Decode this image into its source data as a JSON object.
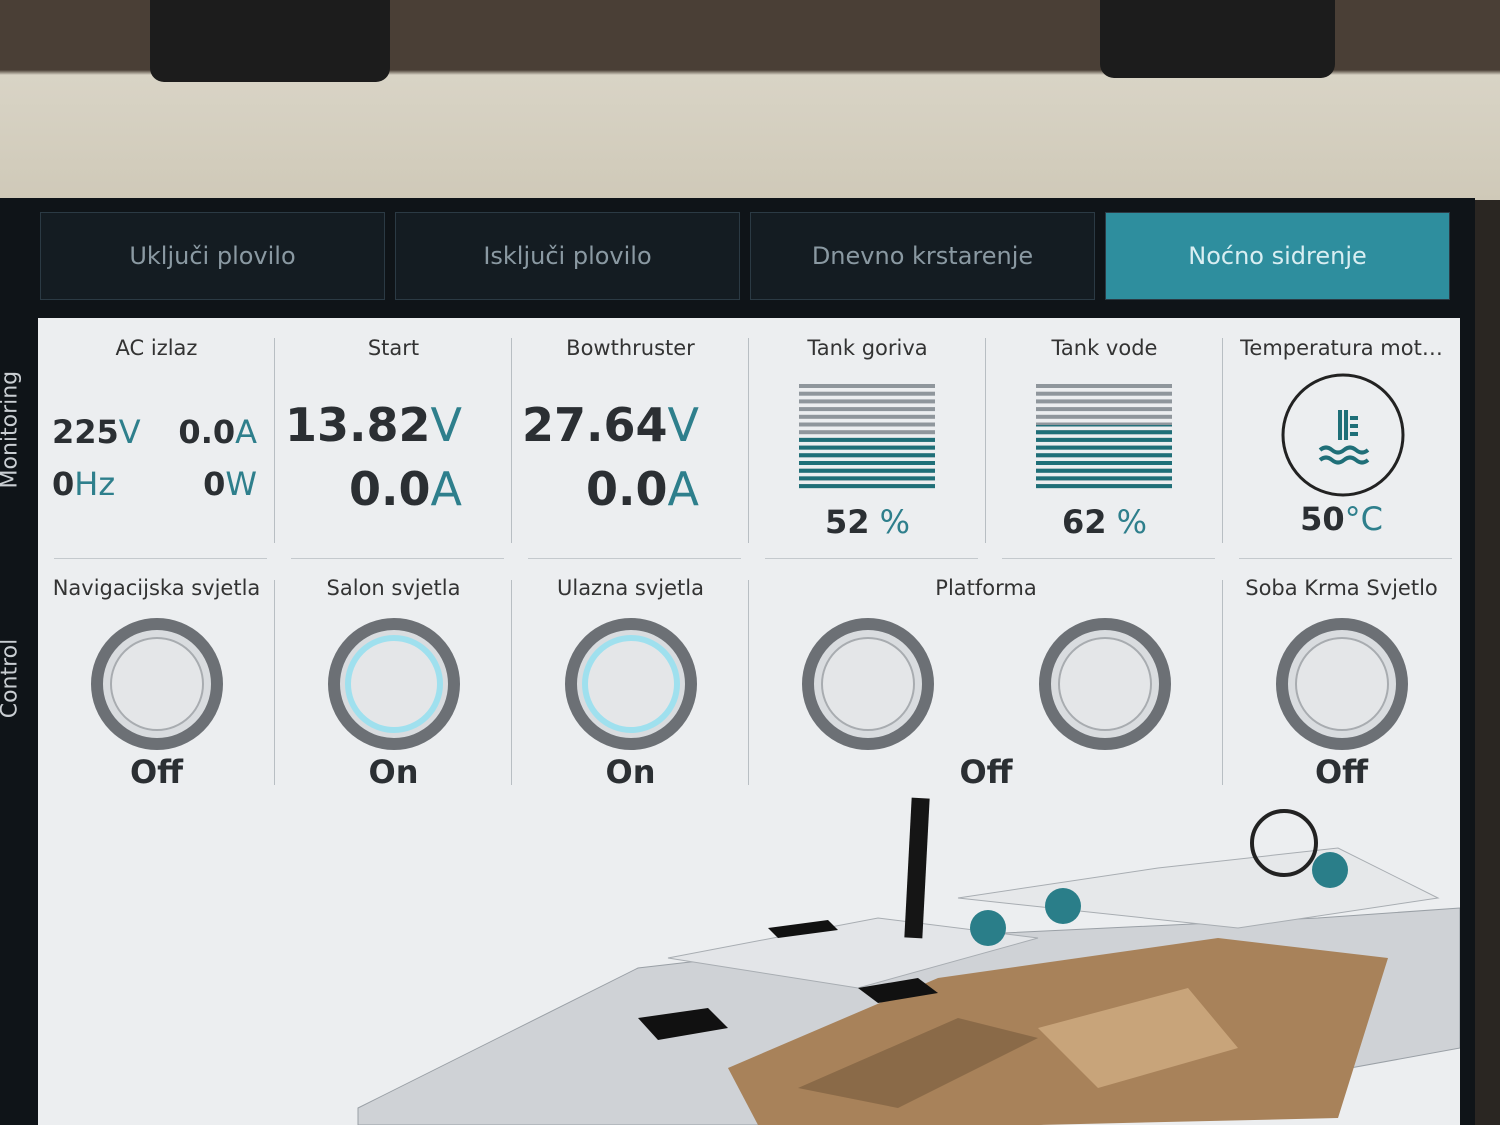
{
  "tabs": [
    "Uključi plovilo",
    "Isključi plovilo",
    "Dnevno krstarenje",
    "Noćno sidrenje"
  ],
  "active_tab": 3,
  "side_labels": [
    "Monitoring",
    "Control"
  ],
  "monitoring": [
    {
      "title": "AC izlaz",
      "readings": [
        {
          "value": "225",
          "unit": "V"
        },
        {
          "value": "0.0",
          "unit": "A"
        },
        {
          "value": "0",
          "unit": "Hz"
        },
        {
          "value": "0",
          "unit": "W"
        }
      ]
    },
    {
      "title": "Start",
      "readings": [
        {
          "value": "13.82",
          "unit": "V"
        },
        {
          "value": "0.0",
          "unit": "A"
        }
      ]
    },
    {
      "title": "Bowthruster",
      "readings": [
        {
          "value": "27.64",
          "unit": "V"
        },
        {
          "value": "0.0",
          "unit": "A"
        }
      ]
    },
    {
      "title": "Tank goriva",
      "level": 52,
      "unit": "%"
    },
    {
      "title": "Tank vode",
      "level": 62,
      "unit": "%"
    },
    {
      "title": "Temperatura mot…",
      "value": "50",
      "unit": "°C"
    }
  ],
  "controls": [
    {
      "title": "Navigacijska svjetla",
      "state": "Off",
      "lit": false
    },
    {
      "title": "Salon svjetla",
      "state": "On",
      "lit": true
    },
    {
      "title": "Ulazna svjetla",
      "state": "On",
      "lit": true
    },
    {
      "title": "Platforma",
      "state": "Off",
      "lit": false
    },
    {
      "title": "Soba Krma Svjetlo",
      "state": "Off",
      "lit": false
    }
  ]
}
